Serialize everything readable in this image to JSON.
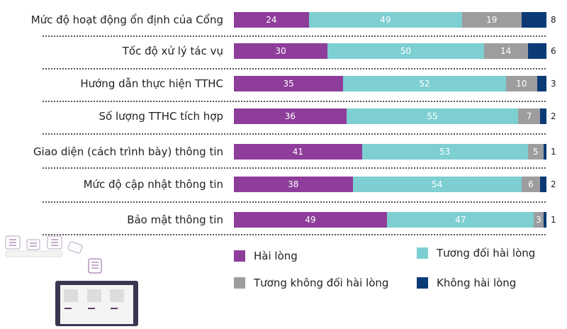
{
  "chart_data": {
    "type": "bar",
    "orientation": "horizontal",
    "stacked": true,
    "categories": [
      "Mức độ hoạt động ổn định của Cổng",
      "Tốc độ xử lý tác vụ",
      "Hướng dẫn thực hiện TTHC",
      "Số lượng TTHC tích hợp",
      "Giao diện (cách trình bày) thông tin",
      "Mức độ cập nhật thông tin",
      "Bảo mật thông tin"
    ],
    "series": [
      {
        "name": "Hài lòng",
        "color": "#8e3d9b",
        "values": [
          24,
          30,
          35,
          36,
          41,
          38,
          49
        ]
      },
      {
        "name": "Tương đối hài lòng",
        "color": "#7dcfd2",
        "values": [
          49,
          50,
          52,
          55,
          53,
          54,
          47
        ]
      },
      {
        "name": "Tương không đối hài lòng",
        "color": "#9d9d9f",
        "values": [
          19,
          14,
          10,
          7,
          5,
          6,
          3
        ]
      },
      {
        "name": "Không hài lòng",
        "color": "#0c3a77",
        "values": [
          8,
          6,
          3,
          2,
          1,
          2,
          1
        ]
      }
    ],
    "xlim": [
      0,
      100
    ],
    "grid": false,
    "legend_placement": "bottom"
  }
}
